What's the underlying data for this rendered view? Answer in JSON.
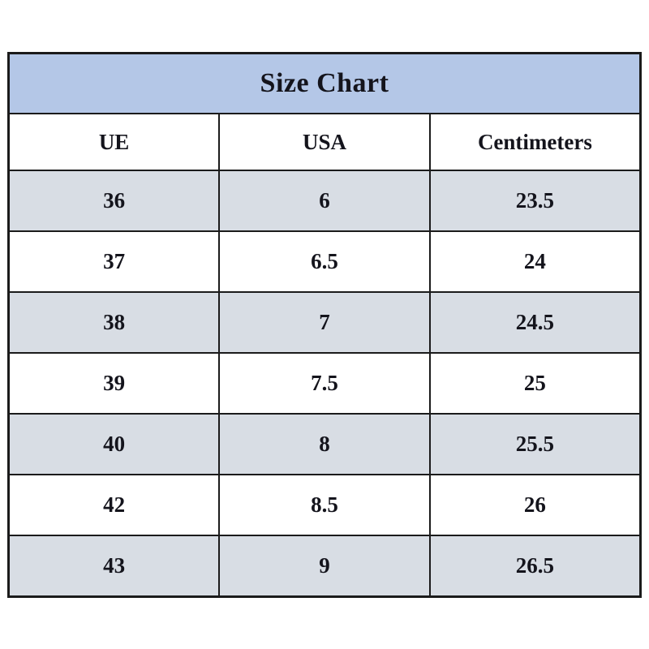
{
  "title": "Size Chart",
  "colors": {
    "title_bg": "#b4c7e7",
    "row_alt_bg": "#d8dde4",
    "border": "#1b1b1b",
    "text": "#14141c"
  },
  "chart_data": {
    "type": "table",
    "title": "Size Chart",
    "columns": [
      "UE",
      "USA",
      "Centimeters"
    ],
    "rows": [
      [
        "36",
        "6",
        "23.5"
      ],
      [
        "37",
        "6.5",
        "24"
      ],
      [
        "38",
        "7",
        "24.5"
      ],
      [
        "39",
        "7.5",
        "25"
      ],
      [
        "40",
        "8",
        "25.5"
      ],
      [
        "42",
        "8.5",
        "26"
      ],
      [
        "43",
        "9",
        "26.5"
      ]
    ],
    "layout": {
      "row_striping": "odd rows shaded blue-gray, even rows white",
      "title_band_color": "#b4c7e7",
      "grid": true
    }
  }
}
